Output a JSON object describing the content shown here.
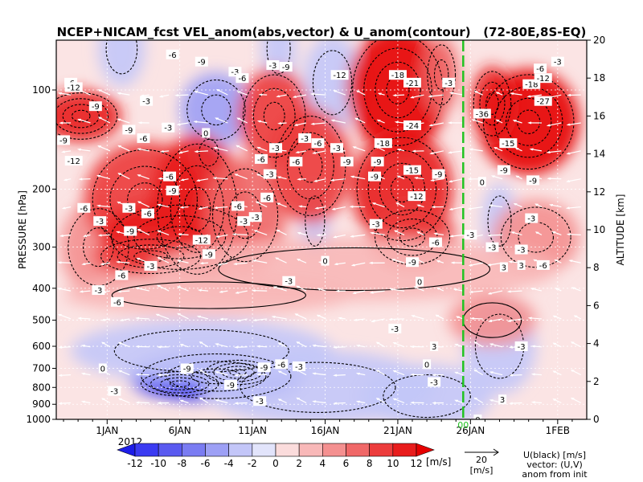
{
  "chart_data": {
    "type": "heatmap",
    "title": "NCEP+NICAM_fcst VEL_anom(abs,vector) & U_anom(contour)   (72-80E,8S-EQ)",
    "ylabel_left": "PRESSURE [hPa]",
    "ylabel_right": "ALTITUDE [km]",
    "pressure_ticks": [
      "100",
      "200",
      "300",
      "400",
      "500",
      "600",
      "700",
      "800",
      "900",
      "1000"
    ],
    "pressure_values": [
      100,
      200,
      300,
      400,
      500,
      600,
      700,
      800,
      900,
      1000
    ],
    "altitude_ticks": [
      "0",
      "2",
      "4",
      "6",
      "8",
      "10",
      "12",
      "14",
      "16",
      "18",
      "20"
    ],
    "x_ticks": [
      "1JAN",
      "6JAN",
      "11JAN",
      "16JAN",
      "21JAN",
      "26JAN",
      "1FEB"
    ],
    "x_tick_days": [
      1,
      6,
      11,
      16,
      21,
      26,
      32
    ],
    "x_year": "2012",
    "x_range_days": [
      -2.5,
      34
    ],
    "forecast_init_day": 25.5,
    "forecast_marker": "00",
    "colorbar": {
      "levels": [
        "-12",
        "-10",
        "-8",
        "-6",
        "-4",
        "-2",
        "0",
        "2",
        "4",
        "6",
        "8",
        "10",
        "12"
      ],
      "unit": "[m/s]",
      "colors": [
        "#1d1de8",
        "#3b3bf2",
        "#5a5af0",
        "#7a7cf2",
        "#9da0f5",
        "#c3c6f8",
        "#e2e4fb",
        "#fbdcdc",
        "#f8b8b8",
        "#f49090",
        "#f06868",
        "#ec3c3c",
        "#e81c1c",
        "#e60000"
      ]
    },
    "vector_ref": {
      "value": "20",
      "unit": "[m/s]"
    },
    "legend_text": [
      "U(black) [m/s]",
      "vector: (U,V)",
      "anom from init"
    ],
    "contour_labels": [
      {
        "t": "-6",
        "day": -1.5,
        "p": 95
      },
      {
        "t": "-12",
        "day": -1.3,
        "p": 98
      },
      {
        "t": "-9",
        "day": 0.2,
        "p": 112
      },
      {
        "t": "-9",
        "day": -2.0,
        "p": 142
      },
      {
        "t": "-12",
        "day": -1.3,
        "p": 164
      },
      {
        "t": "-6",
        "day": -0.6,
        "p": 228
      },
      {
        "t": "-3",
        "day": 0.5,
        "p": 250
      },
      {
        "t": "-9",
        "day": 2.5,
        "p": 132
      },
      {
        "t": "-6",
        "day": 3.5,
        "p": 140
      },
      {
        "t": "-3",
        "day": 3.7,
        "p": 108
      },
      {
        "t": "-6",
        "day": 5.5,
        "p": 78
      },
      {
        "t": "-9",
        "day": 7.5,
        "p": 82
      },
      {
        "t": "-9",
        "day": 10.5,
        "p": 68
      },
      {
        "t": "-3",
        "day": 9.8,
        "p": 88
      },
      {
        "t": "-6",
        "day": 10.3,
        "p": 92
      },
      {
        "t": "-3",
        "day": 5.2,
        "p": 130
      },
      {
        "t": "0",
        "day": 7.8,
        "p": 135
      },
      {
        "t": "-6",
        "day": 5.3,
        "p": 183
      },
      {
        "t": "-9",
        "day": 5.5,
        "p": 202
      },
      {
        "t": "-3",
        "day": 2.5,
        "p": 228
      },
      {
        "t": "-6",
        "day": 3.8,
        "p": 237
      },
      {
        "t": "-9",
        "day": 2.6,
        "p": 268
      },
      {
        "t": "-12",
        "day": 7.5,
        "p": 285
      },
      {
        "t": "-9",
        "day": 8.0,
        "p": 315
      },
      {
        "t": "-3",
        "day": 4.0,
        "p": 342
      },
      {
        "t": "-6",
        "day": 2.0,
        "p": 365
      },
      {
        "t": "-6",
        "day": 10.0,
        "p": 225
      },
      {
        "t": "-3",
        "day": 10.4,
        "p": 250
      },
      {
        "t": "-3",
        "day": 11.2,
        "p": 243
      },
      {
        "t": "-6",
        "day": 12.0,
        "p": 212
      },
      {
        "t": "-3",
        "day": 12.2,
        "p": 180
      },
      {
        "t": "-6",
        "day": 11.6,
        "p": 162
      },
      {
        "t": "-3",
        "day": 12.6,
        "p": 150
      },
      {
        "t": "-9",
        "day": 13.3,
        "p": 85
      },
      {
        "t": "-3",
        "day": 12.4,
        "p": 84
      },
      {
        "t": "-6",
        "day": 14.0,
        "p": 165
      },
      {
        "t": "-3",
        "day": 14.6,
        "p": 140
      },
      {
        "t": "-12",
        "day": 17.0,
        "p": 90
      },
      {
        "t": "-6",
        "day": 15.5,
        "p": 145
      },
      {
        "t": "-9",
        "day": 17.5,
        "p": 165
      },
      {
        "t": "-3",
        "day": 16.8,
        "p": 150
      },
      {
        "t": "-18",
        "day": 21.0,
        "p": 90
      },
      {
        "t": "-21",
        "day": 22.0,
        "p": 95
      },
      {
        "t": "-24",
        "day": 22.0,
        "p": 128
      },
      {
        "t": "-18",
        "day": 20.0,
        "p": 145
      },
      {
        "t": "-9",
        "day": 19.6,
        "p": 165
      },
      {
        "t": "-15",
        "day": 22.0,
        "p": 175
      },
      {
        "t": "-12",
        "day": 22.3,
        "p": 210
      },
      {
        "t": "-9",
        "day": 23.8,
        "p": 180
      },
      {
        "t": "-9",
        "day": 19.4,
        "p": 183
      },
      {
        "t": "-3",
        "day": 19.5,
        "p": 255
      },
      {
        "t": "-9",
        "day": 22.0,
        "p": 333
      },
      {
        "t": "-6",
        "day": 23.6,
        "p": 290
      },
      {
        "t": "-3",
        "day": 24.5,
        "p": 95
      },
      {
        "t": "0",
        "day": 22.5,
        "p": 382
      },
      {
        "t": "-3",
        "day": 20.8,
        "p": 530
      },
      {
        "t": "3",
        "day": 23.5,
        "p": 600
      },
      {
        "t": "0",
        "day": 23.0,
        "p": 680
      },
      {
        "t": "-3",
        "day": 26.0,
        "p": 275
      },
      {
        "t": "-36",
        "day": 26.8,
        "p": 118
      },
      {
        "t": "-15",
        "day": 28.6,
        "p": 145
      },
      {
        "t": "-9",
        "day": 28.3,
        "p": 175
      },
      {
        "t": "-6",
        "day": 30.8,
        "p": 86
      },
      {
        "t": "-18",
        "day": 30.2,
        "p": 96
      },
      {
        "t": "-12",
        "day": 31.0,
        "p": 92
      },
      {
        "t": "-27",
        "day": 31.0,
        "p": 108
      },
      {
        "t": "-3",
        "day": 32.0,
        "p": 82
      },
      {
        "t": "-9",
        "day": 30.3,
        "p": 188
      },
      {
        "t": "-3",
        "day": 30.2,
        "p": 245
      },
      {
        "t": "-3",
        "day": 27.5,
        "p": 300
      },
      {
        "t": "-3",
        "day": 29.5,
        "p": 305
      },
      {
        "t": "-6",
        "day": 31.0,
        "p": 340
      },
      {
        "t": "3",
        "day": 28.3,
        "p": 345
      },
      {
        "t": "3",
        "day": 29.5,
        "p": 340
      },
      {
        "t": "-3",
        "day": 29.5,
        "p": 600
      },
      {
        "t": "0",
        "day": 26.8,
        "p": 190
      },
      {
        "t": "-6",
        "day": 1.7,
        "p": 440
      },
      {
        "t": "-3",
        "day": 0.4,
        "p": 405
      },
      {
        "t": "0",
        "day": 0.7,
        "p": 700
      },
      {
        "t": "-3",
        "day": 1.5,
        "p": 820
      },
      {
        "t": "-9",
        "day": 6.5,
        "p": 700
      },
      {
        "t": "-9",
        "day": 9.5,
        "p": 785
      },
      {
        "t": "-9",
        "day": 11.8,
        "p": 695
      },
      {
        "t": "-6",
        "day": 13.0,
        "p": 680
      },
      {
        "t": "-3",
        "day": 14.2,
        "p": 690
      },
      {
        "t": "-3",
        "day": 11.5,
        "p": 880
      },
      {
        "t": "-3",
        "day": 23.5,
        "p": 770
      },
      {
        "t": "0",
        "day": 16.0,
        "p": 330
      },
      {
        "t": "-3",
        "day": 13.5,
        "p": 380
      },
      {
        "t": "3",
        "day": 28.2,
        "p": 870
      },
      {
        "t": "0",
        "day": 26.5,
        "p": 1000
      }
    ],
    "red_anomalies": [
      {
        "day": -0.8,
        "p": 120,
        "rd": 2.8,
        "rp": 1.2,
        "v": 11
      },
      {
        "day": 0.4,
        "p": 300,
        "rd": 2.6,
        "rp": 1.4,
        "v": 5
      },
      {
        "day": 3.6,
        "p": 215,
        "rd": 4.2,
        "rp": 1.5,
        "v": 8
      },
      {
        "day": 7.2,
        "p": 230,
        "rd": 3.2,
        "rp": 1.7,
        "v": 10
      },
      {
        "day": 6.0,
        "p": 280,
        "rd": 5.5,
        "rp": 1.3,
        "v": 10
      },
      {
        "day": 4.0,
        "p": 320,
        "rd": 4.0,
        "rp": 1.15,
        "v": 8
      },
      {
        "day": 10.5,
        "p": 240,
        "rd": 2.8,
        "rp": 1.5,
        "v": 7
      },
      {
        "day": 12.5,
        "p": 120,
        "rd": 2.5,
        "rp": 1.4,
        "v": 9
      },
      {
        "day": 15.0,
        "p": 170,
        "rd": 2.8,
        "rp": 1.5,
        "v": 8
      },
      {
        "day": 21.0,
        "p": 100,
        "rd": 3.5,
        "rp": 1.55,
        "v": 12
      },
      {
        "day": 21.3,
        "p": 200,
        "rd": 3.5,
        "rp": 1.5,
        "v": 11
      },
      {
        "day": 22.0,
        "p": 280,
        "rd": 3.0,
        "rp": 1.25,
        "v": 9
      },
      {
        "day": 24.0,
        "p": 90,
        "rd": 1.2,
        "rp": 1.3,
        "v": 6
      },
      {
        "day": 30.0,
        "p": 125,
        "rd": 3.5,
        "rp": 1.45,
        "v": 12
      },
      {
        "day": 27.5,
        "p": 110,
        "rd": 1.5,
        "rp": 1.3,
        "v": 10
      },
      {
        "day": 30.5,
        "p": 280,
        "rd": 3.0,
        "rp": 1.3,
        "v": 5
      },
      {
        "day": 18.0,
        "p": 350,
        "rd": 14.0,
        "rp": 1.25,
        "v": 3
      },
      {
        "day": 8.0,
        "p": 420,
        "rd": 10.0,
        "rp": 1.15,
        "v": 3
      },
      {
        "day": 27.5,
        "p": 500,
        "rd": 3.0,
        "rp": 1.2,
        "v": 4
      }
    ],
    "blue_anomalies": [
      {
        "day": 8.5,
        "p": 740,
        "rd": 6.0,
        "rp": 1.2,
        "v": -10
      },
      {
        "day": 6.0,
        "p": 780,
        "rd": 3.0,
        "rp": 1.1,
        "v": -11
      },
      {
        "day": 10.0,
        "p": 720,
        "rd": 2.5,
        "rp": 1.1,
        "v": -12
      },
      {
        "day": 7.5,
        "p": 620,
        "rd": 9.0,
        "rp": 1.25,
        "v": -4
      },
      {
        "day": 15.5,
        "p": 800,
        "rd": 8.0,
        "rp": 1.3,
        "v": -3
      },
      {
        "day": 23.0,
        "p": 850,
        "rd": 4.5,
        "rp": 1.25,
        "v": -3
      },
      {
        "day": 8.5,
        "p": 115,
        "rd": 2.5,
        "rp": 1.3,
        "v": -5
      },
      {
        "day": 12.8,
        "p": 75,
        "rd": 1.2,
        "rp": 1.3,
        "v": -4
      },
      {
        "day": 16.5,
        "p": 95,
        "rd": 2.0,
        "rp": 1.4,
        "v": -4
      },
      {
        "day": 2.0,
        "p": 75,
        "rd": 1.6,
        "rp": 1.3,
        "v": -3
      },
      {
        "day": 15.3,
        "p": 250,
        "rd": 1.0,
        "rp": 1.3,
        "v": -3
      },
      {
        "day": 28.0,
        "p": 600,
        "rd": 2.5,
        "rp": 1.4,
        "v": -4
      },
      {
        "day": 28.0,
        "p": 250,
        "rd": 1.2,
        "rp": 1.3,
        "v": -3
      },
      {
        "day": 8.0,
        "p": 155,
        "rd": 1.0,
        "rp": 1.15,
        "v": -3
      }
    ]
  }
}
